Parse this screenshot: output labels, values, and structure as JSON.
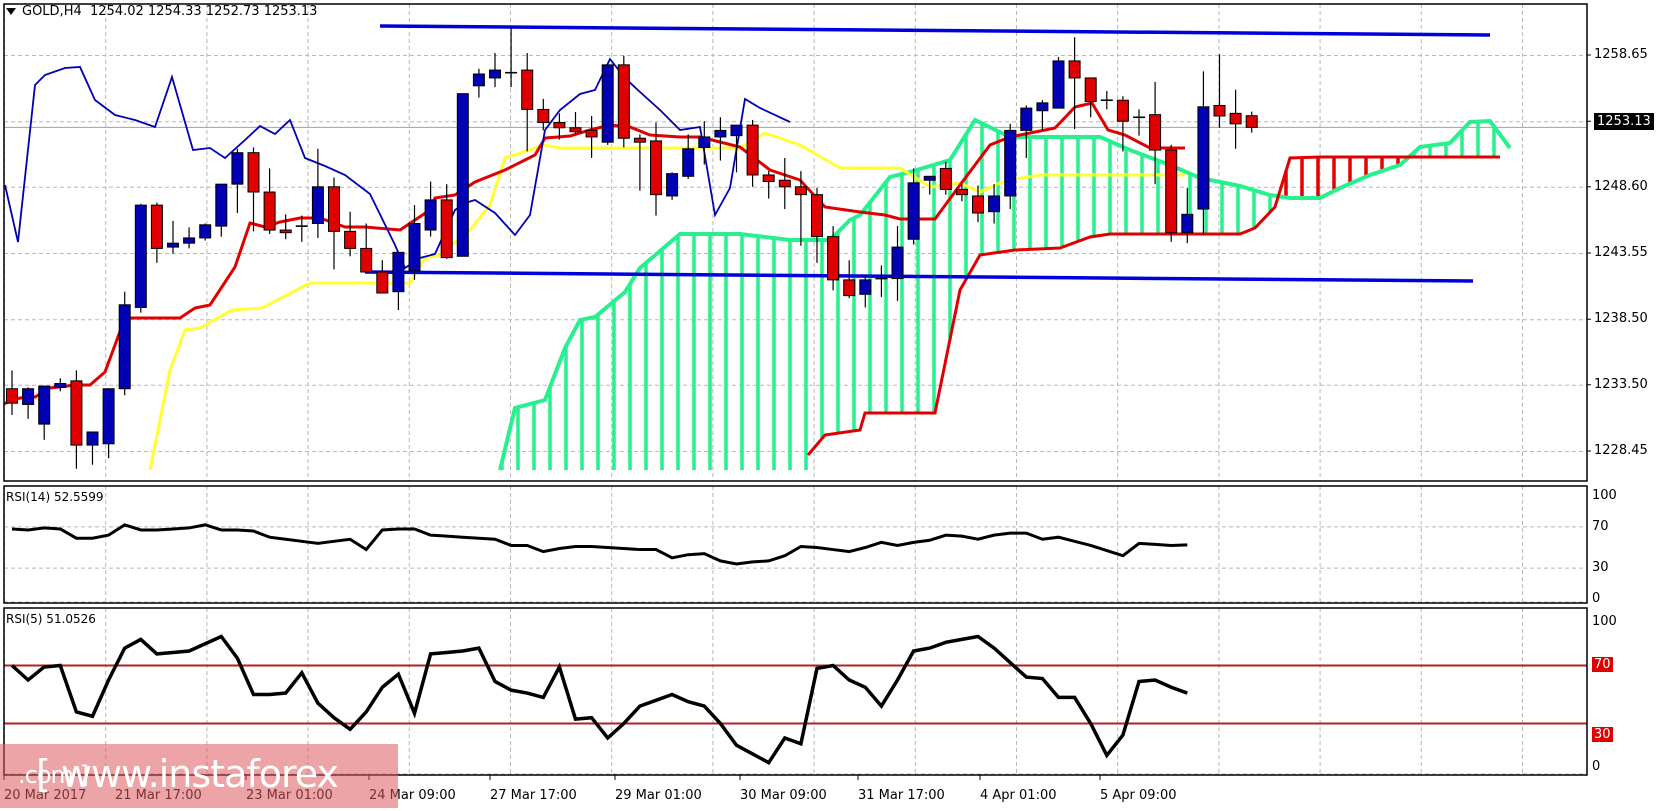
{
  "header": {
    "symbol": "GOLD,H4",
    "ohlc": "1254.02 1254.33 1252.73 1253.13"
  },
  "current_price": "1253.13",
  "watermark": {
    "main": "[ www.instaforex",
    "suffix": ".com ]"
  },
  "indicators": {
    "rsi14": {
      "label": "RSI(14) 52.5599"
    },
    "rsi5": {
      "label": "RSI(5) 51.0526",
      "levels": [
        "70",
        "30"
      ]
    }
  },
  "axes": {
    "price_ticks": [
      "1258.65",
      "1253.60",
      "1248.60",
      "1243.55",
      "1238.50",
      "1233.50",
      "1228.45"
    ],
    "rsi14_ticks": [
      "100",
      "70",
      "30",
      "0"
    ],
    "rsi5_ticks": [
      "100",
      "70",
      "30",
      "0"
    ],
    "time_ticks": [
      "20 Mar 2017",
      "21 Mar 17:00",
      "23 Mar 01:00",
      "24 Mar 09:00",
      "27 Mar 17:00",
      "29 Mar 01:00",
      "30 Mar 09:00",
      "31 Mar 17:00",
      "4 Apr 01:00",
      "5 Apr 09:00"
    ]
  },
  "colors": {
    "bull": "#0000b4",
    "bear": "#e00000",
    "tenkan": "#e00000",
    "kijun": "#ffff33",
    "chikou": "#0000b4",
    "kumo_bull": "#27f08e",
    "kumo_bear": "#e00000",
    "trendline": "#0000dd",
    "rsi": "#000000",
    "rsi_levels": "#b22222"
  },
  "chart_data": [
    {
      "type": "candlestick",
      "title": "GOLD,H4",
      "timeframe": "H4",
      "ylim": [
        1226.5,
        1261.0
      ],
      "yticks": [
        1258.65,
        1253.6,
        1248.6,
        1243.55,
        1238.5,
        1233.5,
        1228.45
      ],
      "xticks": [
        "20 Mar 2017",
        "21 Mar 17:00",
        "23 Mar 01:00",
        "24 Mar 09:00",
        "27 Mar 17:00",
        "29 Mar 01:00",
        "30 Mar 09:00",
        "31 Mar 17:00",
        "4 Apr 01:00",
        "5 Apr 09:00"
      ],
      "last_bar": {
        "open": 1254.02,
        "high": 1254.33,
        "low": 1252.73,
        "close": 1253.13
      },
      "ohlc": [
        [
          1233.2,
          1234.6,
          1231.2,
          1232.1
        ],
        [
          1232.0,
          1233.3,
          1230.9,
          1233.2
        ],
        [
          1230.5,
          1233.1,
          1229.3,
          1233.4
        ],
        [
          1233.3,
          1234.0,
          1233.0,
          1233.6
        ],
        [
          1233.8,
          1234.6,
          1227.1,
          1228.9
        ],
        [
          1228.9,
          1229.6,
          1227.4,
          1229.9
        ],
        [
          1229.0,
          1233.0,
          1227.9,
          1233.2
        ],
        [
          1233.2,
          1240.6,
          1232.7,
          1239.6
        ],
        [
          1239.4,
          1247.3,
          1239.0,
          1247.2
        ],
        [
          1247.2,
          1247.4,
          1242.8,
          1243.9
        ],
        [
          1244.0,
          1246.0,
          1243.5,
          1244.3
        ],
        [
          1244.3,
          1245.5,
          1243.9,
          1244.7
        ],
        [
          1244.7,
          1245.8,
          1244.5,
          1245.7
        ],
        [
          1245.6,
          1248.7,
          1244.8,
          1248.8
        ],
        [
          1248.8,
          1251.5,
          1246.6,
          1251.2
        ],
        [
          1251.2,
          1251.6,
          1245.2,
          1248.2
        ],
        [
          1248.2,
          1250.0,
          1245.0,
          1245.3
        ],
        [
          1245.3,
          1246.5,
          1244.6,
          1245.1
        ],
        [
          1245.5,
          1246.4,
          1244.4,
          1245.6
        ],
        [
          1245.8,
          1251.5,
          1244.7,
          1248.6
        ],
        [
          1248.6,
          1249.3,
          1242.3,
          1245.2
        ],
        [
          1245.2,
          1246.7,
          1243.3,
          1243.9
        ],
        [
          1243.9,
          1245.8,
          1242.6,
          1242.1
        ],
        [
          1242.1,
          1243.0,
          1240.8,
          1240.5
        ],
        [
          1240.6,
          1243.4,
          1239.2,
          1243.6
        ],
        [
          1242.2,
          1247.2,
          1241.5,
          1245.8
        ],
        [
          1245.3,
          1249.0,
          1244.8,
          1247.6
        ],
        [
          1247.6,
          1248.8,
          1243.1,
          1243.2
        ],
        [
          1243.3,
          1255.3,
          1244.0,
          1255.7
        ],
        [
          1256.3,
          1257.6,
          1255.4,
          1257.2
        ],
        [
          1256.9,
          1258.8,
          1256.2,
          1257.5
        ],
        [
          1257.3,
          1260.8,
          1256.2,
          1257.3
        ],
        [
          1257.5,
          1258.8,
          1251.3,
          1254.5
        ],
        [
          1254.5,
          1255.3,
          1252.9,
          1253.5
        ],
        [
          1253.5,
          1254.2,
          1252.2,
          1253.1
        ],
        [
          1253.1,
          1254.3,
          1252.6,
          1252.8
        ],
        [
          1252.9,
          1254.0,
          1250.8,
          1252.4
        ],
        [
          1252.0,
          1257.9,
          1251.8,
          1257.9
        ],
        [
          1257.9,
          1258.6,
          1251.6,
          1252.3
        ],
        [
          1252.3,
          1252.6,
          1248.3,
          1252.0
        ],
        [
          1252.1,
          1253.5,
          1246.4,
          1248.0
        ],
        [
          1247.9,
          1249.7,
          1247.6,
          1249.6
        ],
        [
          1249.4,
          1252.6,
          1249.2,
          1251.5
        ],
        [
          1251.6,
          1253.6,
          1250.3,
          1252.4
        ],
        [
          1252.4,
          1253.9,
          1250.6,
          1252.9
        ],
        [
          1252.5,
          1253.3,
          1249.7,
          1253.3
        ],
        [
          1253.3,
          1253.7,
          1248.6,
          1249.5
        ],
        [
          1249.5,
          1249.8,
          1247.7,
          1249.0
        ],
        [
          1249.1,
          1250.8,
          1246.9,
          1248.6
        ],
        [
          1248.6,
          1249.8,
          1244.1,
          1248.0
        ],
        [
          1248.0,
          1248.5,
          1242.8,
          1244.8
        ],
        [
          1244.8,
          1245.6,
          1240.7,
          1241.5
        ],
        [
          1241.5,
          1243.0,
          1240.1,
          1240.3
        ],
        [
          1240.4,
          1241.9,
          1239.4,
          1241.5
        ],
        [
          1241.6,
          1242.6,
          1240.2,
          1241.6
        ],
        [
          1241.6,
          1245.6,
          1239.9,
          1244.0
        ],
        [
          1244.6,
          1250.0,
          1244.2,
          1248.9
        ],
        [
          1249.1,
          1249.4,
          1248.0,
          1249.4
        ],
        [
          1250.0,
          1250.5,
          1248.0,
          1248.4
        ],
        [
          1248.4,
          1248.8,
          1247.5,
          1248.0
        ],
        [
          1247.9,
          1248.7,
          1245.9,
          1246.6
        ],
        [
          1246.7,
          1248.8,
          1245.8,
          1247.9
        ],
        [
          1247.9,
          1253.4,
          1246.9,
          1252.9
        ],
        [
          1252.9,
          1254.8,
          1250.8,
          1254.6
        ],
        [
          1254.4,
          1255.2,
          1252.9,
          1255.0
        ],
        [
          1254.6,
          1258.5,
          1254.6,
          1258.2
        ],
        [
          1258.2,
          1260.0,
          1253.0,
          1256.9
        ],
        [
          1256.9,
          1256.3,
          1253.9,
          1255.1
        ],
        [
          1255.2,
          1255.9,
          1254.5,
          1255.2
        ],
        [
          1255.2,
          1255.5,
          1251.3,
          1253.6
        ],
        [
          1253.8,
          1254.5,
          1252.5,
          1253.9
        ],
        [
          1254.1,
          1256.6,
          1248.8,
          1251.4
        ],
        [
          1251.4,
          1251.8,
          1244.4,
          1245.1
        ],
        [
          1245.1,
          1248.5,
          1244.3,
          1246.5
        ],
        [
          1246.9,
          1257.4,
          1244.9,
          1254.7
        ],
        [
          1254.8,
          1258.7,
          1253.1,
          1254.0
        ],
        [
          1254.2,
          1256.0,
          1251.5,
          1253.4
        ],
        [
          1254.02,
          1254.33,
          1252.73,
          1253.13
        ]
      ],
      "ichimoku": {
        "tenkan": [
          1230.2,
          1230.4,
          1230.7,
          1230.8,
          1231.6,
          1231.5,
          1231.4,
          1232.3,
          1236.2,
          1237.5,
          1237.5,
          1237.5,
          1237.5,
          1238.0,
          1238.3,
          1239.1,
          1240.8,
          1242.7,
          1245.2,
          1247.1,
          1246.0,
          1246.3,
          1246.3,
          1246.3,
          1246.0,
          1245.7,
          1245.6,
          1245.6,
          1245.6,
          1245.8,
          1246.6,
          1248.9,
          1250.1,
          1250.1,
          1250.5,
          1251.0,
          1251.3,
          1251.7,
          1253.9,
          1253.9,
          1253.9,
          1252.7,
          1251.9,
          1251.8,
          1251.8,
          1251.8,
          1251.6,
          1251.3,
          1250.6,
          1250.1,
          1248.5,
          1248.2,
          1247.9,
          1247.8,
          1247.6,
          1246.9,
          1246.1,
          1245.9,
          1245.6,
          1245.4,
          1245.4,
          1245.4,
          1246.6,
          1247.3,
          1249.9,
          1251.9,
          1252.5,
          1253.3,
          1253.4,
          1253.4,
          1255.0,
          1256.3,
          1256.4,
          1252.4,
          1250.9,
          1250.7,
          1250.7
        ],
        "kijun": [
          null,
          null,
          null,
          null,
          null,
          null,
          null,
          null,
          null,
          1226.5,
          1230.5,
          1235.2,
          1236.2,
          1236.4,
          1237.2,
          1237.3,
          1238.3,
          1238.9,
          1239.0,
          1239.6,
          1239.6,
          1239.6,
          1239.6,
          1239.6,
          1239.6,
          1239.6,
          1239.6,
          1239.6,
          1240.5,
          1242.1,
          1245.5,
          1246.4,
          1248.5,
          1250.9,
          1250.9,
          1250.9,
          1250.9,
          1250.9,
          1250.9,
          1250.9,
          1250.9,
          1250.9,
          1250.9,
          1250.9,
          1250.9,
          1250.9,
          1250.9,
          1250.9,
          1250.9,
          1251.2,
          1252.2,
          1252.6,
          1252.1,
          1251.3,
          1251.3,
          1251.3,
          1251.3,
          1251.1,
          1250.8,
          1250.4,
          1250.4,
          1249.4,
          1249.2,
          1249.7,
          1249.9,
          1250.3,
          1250.3,
          1250.3,
          1250.3,
          1250.3,
          1250.3,
          1250.3,
          1250.3,
          1250.3,
          1250.3,
          1250.3,
          1250.3
        ]
      },
      "trendlines": [
        {
          "name": "resistance",
          "points": [
            [
              24,
              1260.4
            ],
            [
              93,
              1259.5
            ]
          ]
        },
        {
          "name": "support",
          "points": [
            [
              23,
              1241.5
            ],
            [
              92,
              1240.3
            ]
          ]
        }
      ]
    },
    {
      "type": "line",
      "title": "RSI(14) 52.5599",
      "ylim": [
        0,
        100
      ],
      "yticks": [
        100,
        70,
        30,
        0
      ],
      "values": [
        68,
        67,
        69,
        68,
        59,
        59,
        62,
        72,
        67,
        67,
        68,
        69,
        72,
        67,
        67,
        66,
        60,
        58,
        56,
        54,
        56,
        58,
        48,
        67,
        68,
        68,
        62,
        61,
        60,
        59,
        58,
        52,
        52,
        46,
        49,
        51,
        51,
        50,
        49,
        48,
        48,
        40,
        43,
        44,
        37,
        34,
        36,
        37,
        42,
        51,
        50,
        48,
        46,
        50,
        55,
        52,
        55,
        57,
        62,
        61,
        58,
        62,
        64,
        64,
        58,
        60,
        56,
        52,
        47,
        42,
        54,
        53,
        52,
        52.6
      ]
    },
    {
      "type": "line",
      "title": "RSI(5) 51.0526",
      "ylim": [
        0,
        100
      ],
      "yticks": [
        100,
        70,
        30,
        0
      ],
      "levels": [
        70,
        30
      ],
      "values": [
        70,
        60,
        69,
        70,
        38,
        35,
        60,
        82,
        88,
        78,
        79,
        80,
        85,
        90,
        75,
        50,
        50,
        51,
        65,
        44,
        34,
        26,
        38,
        55,
        64,
        37,
        78,
        79,
        80,
        82,
        59,
        53,
        51,
        48,
        69,
        33,
        34,
        20,
        30,
        42,
        46,
        50,
        45,
        42,
        30,
        15,
        9,
        3,
        20,
        16,
        68,
        70,
        60,
        55,
        42,
        60,
        80,
        82,
        86,
        88,
        90,
        82,
        72,
        62,
        61,
        48,
        48,
        30,
        8,
        22,
        59,
        60,
        55,
        51
      ]
    }
  ]
}
